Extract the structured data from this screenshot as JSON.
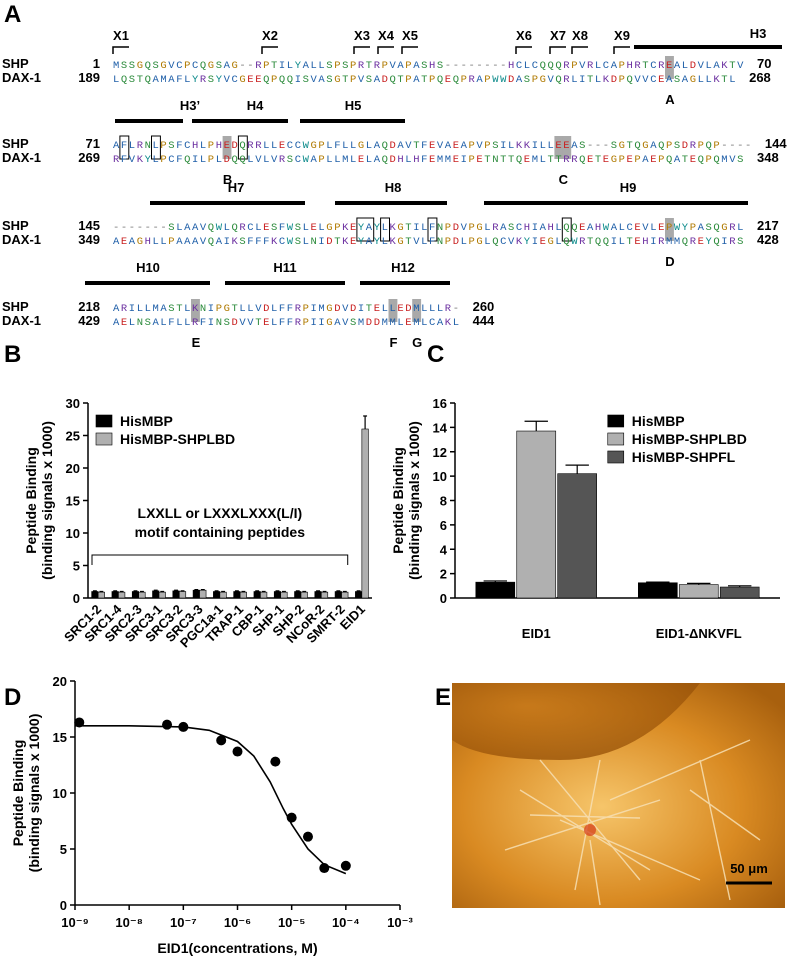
{
  "panel_labels": [
    "A",
    "B",
    "C",
    "D",
    "E"
  ],
  "alignment": {
    "rows": [
      [
        {
          "name": "SHP",
          "start": 1,
          "end": 70,
          "sequence": "MSSGQSGVCPCQGSAG--RPTILYALLSPSPRTRPVAPASHS--------HCLCQQQRPVRLCAPHRTCREALDVLAKTV"
        },
        {
          "name": "DAX-1",
          "start": 189,
          "end": 268,
          "sequence": "LQSTQAMAFLYRSYVCGEEQPQQISVASGTPVSADQTPATPQEQPRAPWWDASPGVQRLITLKDPQVVCEASAGLLKTL"
        }
      ],
      [
        {
          "name": "SHP",
          "start": 71,
          "end": 144,
          "sequence": "AFLRNLPSFCHLPHEDQRRLLECCWGPLFLLGLAQDAVTFEVAEAPVPSILKKILLEEAS---SGTQGAQPSDRPQP----"
        },
        {
          "name": "DAX-1",
          "start": 269,
          "end": 348,
          "sequence": "RFVKYLPCFQILPLDQQLVLVRSCWAPLLMLELAQDHLHFEMMEIPETNTTQEMLTTRRQETEGPEPAEPQATEQPQMVS"
        }
      ],
      [
        {
          "name": "SHP",
          "start": 145,
          "end": 217,
          "sequence": "-------SLAAVQWLQRCLESFWSLELGPKEYAYLKGTILFNPDVPGLRASCHIAHLQQEAHWALCEVLEPWYPASQGRL"
        },
        {
          "name": "DAX-1",
          "start": 349,
          "end": 428,
          "sequence": "AEAGHLLPAAAVQAIKSFFFKCWSLNIDTKEYAYLKGTVLFNPDLPGLQCVKYIEGLQWRTQQILTEHIRMMQREYQIRS"
        }
      ],
      [
        {
          "name": "SHP",
          "start": 218,
          "end": 260,
          "sequence": "ARILLMASTLKNIPGTLLVDLFFRPIMGDVDITELLEDMLLLR-"
        },
        {
          "name": "DAX-1",
          "start": 429,
          "end": 444,
          "sequence": "AELNSALFLLRFINSDVVTELFFRPIIGAVSMDDMMLEMLCAKL"
        }
      ]
    ],
    "motifs": [
      "X1",
      "X2",
      "X3",
      "X4",
      "X5",
      "X6",
      "X7",
      "X8",
      "X9"
    ],
    "helices": [
      "H3",
      "H3’",
      "H4",
      "H5",
      "H7",
      "H8",
      "H9",
      "H10",
      "H11",
      "H12"
    ],
    "sites": [
      "A",
      "B",
      "C",
      "D",
      "E",
      "F",
      "G"
    ]
  },
  "chart_data": [
    {
      "type": "bar",
      "y_label": "Peptide Binding",
      "y_label_sub": "(binding signals x 1000)",
      "annotation": [
        "LXXLL or LXXXLXXX(L/I)",
        "motif containing peptides"
      ],
      "categories": [
        "SRC1-2",
        "SRC1-4",
        "SRC2-3",
        "SRC3-1",
        "SRC3-2",
        "SRC3-3",
        "PGC1a-1",
        "TRAP-1",
        "CBP-1",
        "SHP-1",
        "SHP-2",
        "NCoR-2",
        "SMRT-2",
        "EID1"
      ],
      "series": [
        {
          "name": "HisMBP",
          "color": "#000000",
          "values": [
            1.0,
            1.0,
            1.0,
            1.1,
            1.1,
            1.2,
            1.0,
            1.0,
            1.0,
            1.0,
            1.0,
            1.0,
            1.0,
            1.0
          ],
          "errors": [
            0.1,
            0.1,
            0.1,
            0.1,
            0.1,
            0.1,
            0.1,
            0.1,
            0.1,
            0.1,
            0.1,
            0.1,
            0.1,
            0.1
          ]
        },
        {
          "name": "HisMBP-SHPLBD",
          "color": "#b0b0b0",
          "values": [
            0.9,
            0.9,
            0.9,
            0.9,
            1.0,
            1.2,
            0.9,
            0.9,
            0.9,
            0.9,
            0.9,
            0.9,
            0.9,
            26
          ],
          "errors": [
            0.1,
            0.1,
            0.1,
            0.1,
            0.1,
            0.1,
            0.1,
            0.1,
            0.1,
            0.1,
            0.1,
            0.1,
            0.1,
            2.0
          ]
        }
      ],
      "ylim": [
        0,
        30
      ],
      "yticks": [
        0,
        5,
        10,
        15,
        20,
        25,
        30
      ],
      "legend": "upper left"
    },
    {
      "type": "bar",
      "y_label": "Peptide Binding",
      "y_label_sub": "(binding signals x 1000)",
      "categories": [
        "EID1",
        "EID1-ΔNKVFL"
      ],
      "series": [
        {
          "name": "HisMBP",
          "color": "#000000",
          "values": [
            1.3,
            1.25
          ],
          "errors": [
            0.1,
            0.05
          ]
        },
        {
          "name": "HisMBP-SHPLBD",
          "color": "#b0b0b0",
          "values": [
            13.7,
            1.1
          ],
          "errors": [
            0.8,
            0.1
          ]
        },
        {
          "name": "HisMBP-SHPFL",
          "color": "#555555",
          "values": [
            10.2,
            0.9
          ],
          "errors": [
            0.7,
            0.1
          ]
        }
      ],
      "ylim": [
        0,
        16
      ],
      "yticks": [
        0,
        2,
        4,
        6,
        8,
        10,
        12,
        14,
        16
      ],
      "legend": "upper right"
    },
    {
      "type": "scatter",
      "y_label": "Peptide Binding",
      "y_label_sub": "(binding signals x 1000)",
      "x_label": "EID1(concentrations, M)",
      "x": [
        1.2e-09,
        5e-08,
        1e-07,
        5e-07,
        1e-06,
        5e-06,
        1e-05,
        2e-05,
        4e-05,
        0.0001
      ],
      "values": [
        16.3,
        16.1,
        15.9,
        14.7,
        13.7,
        12.8,
        7.8,
        6.1,
        3.3,
        3.5
      ],
      "fit": {
        "x": [
          1e-09,
          1e-08,
          1e-07,
          3e-07,
          1e-06,
          2e-06,
          4e-06,
          7e-06,
          1e-05,
          2e-05,
          4e-05,
          0.0001
        ],
        "y": [
          16,
          16,
          15.9,
          15.6,
          14.6,
          13.3,
          11,
          8.6,
          7.2,
          5.0,
          3.6,
          2.8
        ]
      },
      "color": "#000000",
      "xscale": "log",
      "xlim": [
        1e-09,
        0.001
      ],
      "xticks": [
        {
          "value": 1e-09,
          "label": "10⁻⁹"
        },
        {
          "value": 1e-08,
          "label": "10⁻⁸"
        },
        {
          "value": 1e-07,
          "label": "10⁻⁷"
        },
        {
          "value": 1e-06,
          "label": "10⁻⁶"
        },
        {
          "value": 1e-05,
          "label": "10⁻⁵"
        },
        {
          "value": 0.0001,
          "label": "10⁻⁴"
        },
        {
          "value": 0.001,
          "label": "10⁻³"
        }
      ],
      "ylim": [
        0,
        20
      ],
      "yticks": [
        0,
        5,
        10,
        15,
        20
      ]
    }
  ],
  "micrograph": {
    "scale_bar": "50 μm"
  }
}
